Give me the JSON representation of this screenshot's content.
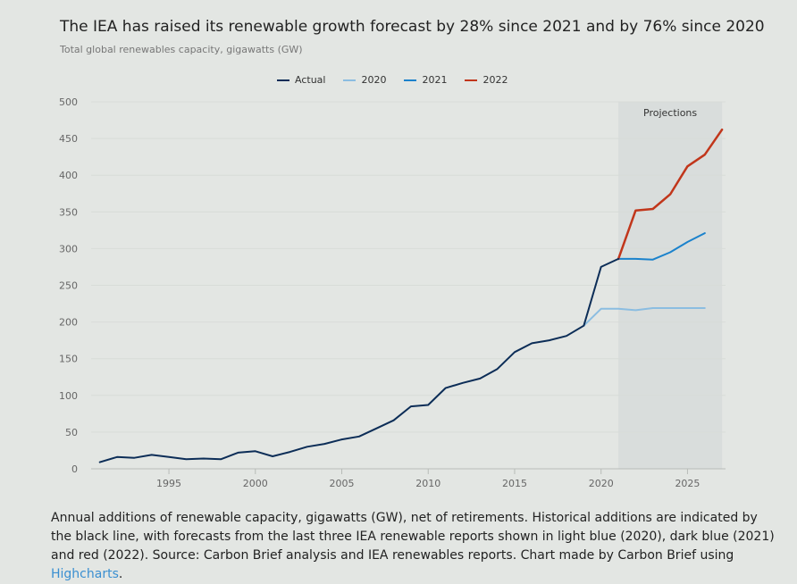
{
  "colors": {
    "actual": "#0c2d57",
    "s2020": "#8bbde1",
    "s2021": "#1b82cc",
    "s2022": "#c1361b",
    "grid": "#d8dcd8",
    "projection_band": "#d9dddc",
    "link": "#3a8fd1"
  },
  "chart_data": {
    "type": "line",
    "title": "The IEA has raised its renewable growth forecast by 28% since 2021 and by 76% since 2020",
    "subtitle": "Total global renewables capacity, gigawatts (GW)",
    "xlim": [
      1990.5,
      2027.2
    ],
    "ylim": [
      0,
      500
    ],
    "x_ticks": [
      1995,
      2000,
      2005,
      2010,
      2015,
      2020,
      2025
    ],
    "y_ticks": [
      0,
      50,
      100,
      150,
      200,
      250,
      300,
      350,
      400,
      450,
      500
    ],
    "grid": true,
    "legend_position": "top-center",
    "annotation": {
      "label": "Projections",
      "x_from": 2021,
      "x_to": 2027.0
    },
    "series": [
      {
        "name": "Actual",
        "color_key": "actual",
        "x": [
          1991,
          1992,
          1993,
          1994,
          1995,
          1996,
          1997,
          1998,
          1999,
          2000,
          2001,
          2002,
          2003,
          2004,
          2005,
          2006,
          2007,
          2008,
          2009,
          2010,
          2011,
          2012,
          2013,
          2014,
          2015,
          2016,
          2017,
          2018,
          2019,
          2020,
          2021
        ],
        "y": [
          9,
          16,
          15,
          19,
          16,
          13,
          14,
          13,
          22,
          24,
          17,
          23,
          30,
          34,
          40,
          44,
          55,
          66,
          85,
          87,
          110,
          117,
          123,
          136,
          159,
          171,
          175,
          181,
          195,
          275,
          286
        ]
      },
      {
        "name": "2020",
        "color_key": "s2020",
        "x": [
          2019,
          2020,
          2021,
          2022,
          2023,
          2024,
          2025,
          2026
        ],
        "y": [
          195,
          218,
          218,
          216,
          219,
          219,
          219,
          219
        ]
      },
      {
        "name": "2021",
        "color_key": "s2021",
        "x": [
          2021,
          2022,
          2023,
          2024,
          2025,
          2026
        ],
        "y": [
          286,
          286,
          285,
          295,
          309,
          321
        ]
      },
      {
        "name": "2022",
        "color_key": "s2022",
        "x": [
          2021,
          2022,
          2023,
          2024,
          2025,
          2026,
          2027
        ],
        "y": [
          286,
          352,
          354,
          374,
          412,
          428,
          462
        ]
      }
    ]
  },
  "caption": {
    "text": "Annual additions of renewable capacity, gigawatts (GW), net of retirements. Historical additions are indicated by the black line, with forecasts from the last three IEA renewable reports shown in light blue (2020), dark blue (2021) and red (2022). Source: Carbon Brief analysis and IEA renewables reports. Chart made by Carbon Brief using ",
    "link_text": "Highcharts",
    "end": "."
  }
}
